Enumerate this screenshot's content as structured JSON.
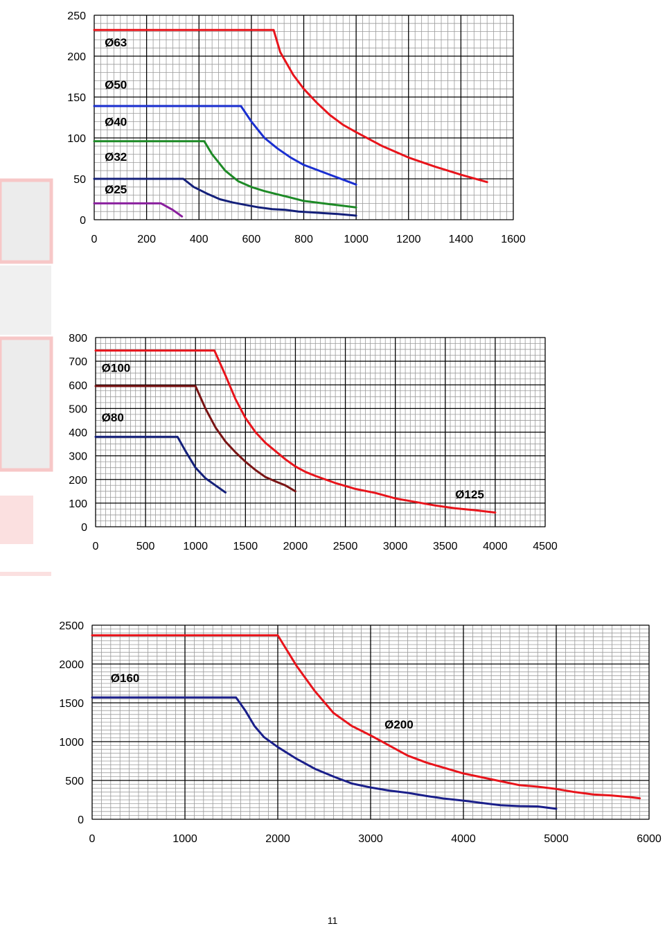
{
  "page_number": "11",
  "chart_data": [
    {
      "type": "line",
      "title": "",
      "xlabel": "",
      "ylabel": "",
      "xlim": [
        0,
        1600
      ],
      "ylim": [
        0,
        250
      ],
      "x_ticks": [
        0,
        200,
        400,
        600,
        800,
        1000,
        1200,
        1400,
        1600
      ],
      "y_ticks": [
        0,
        50,
        100,
        150,
        200,
        250
      ],
      "grid": true,
      "series": [
        {
          "name": "Ø63",
          "color": "#e8141b",
          "points": [
            [
              0,
              232
            ],
            [
              685,
              232
            ],
            [
              710,
              205
            ],
            [
              760,
              177
            ],
            [
              800,
              160
            ],
            [
              850,
              143
            ],
            [
              900,
              128
            ],
            [
              950,
              116
            ],
            [
              1000,
              107
            ],
            [
              1100,
              90
            ],
            [
              1200,
              76
            ],
            [
              1300,
              65
            ],
            [
              1400,
              55
            ],
            [
              1500,
              46
            ]
          ]
        },
        {
          "name": "Ø50",
          "color": "#1a2fd1",
          "points": [
            [
              0,
              139
            ],
            [
              560,
              139
            ],
            [
              600,
              120
            ],
            [
              650,
              100
            ],
            [
              700,
              87
            ],
            [
              750,
              76
            ],
            [
              800,
              67
            ],
            [
              850,
              61
            ],
            [
              900,
              55
            ],
            [
              950,
              49
            ],
            [
              1000,
              43
            ]
          ]
        },
        {
          "name": "Ø40",
          "color": "#1d8a26",
          "points": [
            [
              0,
              96
            ],
            [
              420,
              96
            ],
            [
              450,
              80
            ],
            [
              500,
              60
            ],
            [
              550,
              47
            ],
            [
              600,
              40
            ],
            [
              650,
              35
            ],
            [
              700,
              31
            ],
            [
              750,
              27
            ],
            [
              800,
              23
            ],
            [
              850,
              21
            ],
            [
              900,
              19
            ],
            [
              950,
              17
            ],
            [
              1000,
              15
            ]
          ]
        },
        {
          "name": "Ø32",
          "color": "#14207a",
          "points": [
            [
              0,
              50
            ],
            [
              340,
              50
            ],
            [
              380,
              40
            ],
            [
              430,
              32
            ],
            [
              480,
              25
            ],
            [
              530,
              21
            ],
            [
              580,
              18
            ],
            [
              630,
              15
            ],
            [
              680,
              13
            ],
            [
              730,
              12
            ],
            [
              780,
              10
            ],
            [
              830,
              9
            ],
            [
              880,
              8
            ],
            [
              930,
              7
            ],
            [
              1000,
              5
            ]
          ]
        },
        {
          "name": "Ø25",
          "color": "#8a1f9e",
          "points": [
            [
              0,
              20
            ],
            [
              255,
              20
            ],
            [
              300,
              12
            ],
            [
              335,
              4
            ]
          ]
        }
      ],
      "labels": [
        {
          "text": "Ø63",
          "x": 40,
          "y": 212
        },
        {
          "text": "Ø50",
          "x": 40,
          "y": 160
        },
        {
          "text": "Ø40",
          "x": 40,
          "y": 115
        },
        {
          "text": "Ø32",
          "x": 40,
          "y": 72
        },
        {
          "text": "Ø25",
          "x": 40,
          "y": 32
        }
      ]
    },
    {
      "type": "line",
      "title": "",
      "xlabel": "",
      "ylabel": "",
      "xlim": [
        0,
        4500
      ],
      "ylim": [
        0,
        800
      ],
      "x_ticks": [
        0,
        500,
        1000,
        1500,
        2000,
        2500,
        3000,
        3500,
        4000,
        4500
      ],
      "y_ticks": [
        0,
        100,
        200,
        300,
        400,
        500,
        600,
        700,
        800
      ],
      "grid": true,
      "series": [
        {
          "name": "Ø125",
          "color": "#e8141b",
          "points": [
            [
              0,
              745
            ],
            [
              1190,
              745
            ],
            [
              1300,
              640
            ],
            [
              1400,
              540
            ],
            [
              1500,
              460
            ],
            [
              1600,
              400
            ],
            [
              1700,
              355
            ],
            [
              1800,
              320
            ],
            [
              1900,
              285
            ],
            [
              2000,
              255
            ],
            [
              2100,
              232
            ],
            [
              2200,
              215
            ],
            [
              2400,
              185
            ],
            [
              2600,
              160
            ],
            [
              2800,
              143
            ],
            [
              3000,
              120
            ],
            [
              3200,
              105
            ],
            [
              3400,
              90
            ],
            [
              3600,
              78
            ],
            [
              3800,
              70
            ],
            [
              4000,
              60
            ]
          ]
        },
        {
          "name": "Ø100",
          "color": "#7a1414",
          "points": [
            [
              0,
              595
            ],
            [
              1000,
              595
            ],
            [
              1100,
              500
            ],
            [
              1200,
              420
            ],
            [
              1300,
              360
            ],
            [
              1400,
              315
            ],
            [
              1500,
              275
            ],
            [
              1600,
              240
            ],
            [
              1700,
              210
            ],
            [
              1800,
              192
            ],
            [
              1900,
              175
            ],
            [
              2000,
              150
            ]
          ]
        },
        {
          "name": "Ø80",
          "color": "#14207a",
          "points": [
            [
              0,
              380
            ],
            [
              820,
              380
            ],
            [
              900,
              320
            ],
            [
              1000,
              250
            ],
            [
              1100,
              205
            ],
            [
              1200,
              175
            ],
            [
              1300,
              145
            ]
          ]
        }
      ],
      "labels": [
        {
          "text": "Ø100",
          "x": 60,
          "y": 655
        },
        {
          "text": "Ø80",
          "x": 60,
          "y": 445
        },
        {
          "text": "Ø125",
          "x": 3600,
          "y": 120
        }
      ]
    },
    {
      "type": "line",
      "title": "",
      "xlabel": "",
      "ylabel": "",
      "xlim": [
        0,
        6000
      ],
      "ylim": [
        0,
        2500
      ],
      "x_ticks": [
        0,
        1000,
        2000,
        3000,
        4000,
        5000,
        6000
      ],
      "y_ticks": [
        0,
        500,
        1000,
        1500,
        2000,
        2500
      ],
      "grid": true,
      "series": [
        {
          "name": "Ø200",
          "color": "#e8141b",
          "points": [
            [
              0,
              2370
            ],
            [
              2000,
              2370
            ],
            [
              2200,
              1980
            ],
            [
              2400,
              1650
            ],
            [
              2600,
              1370
            ],
            [
              2800,
              1200
            ],
            [
              3000,
              1080
            ],
            [
              3200,
              950
            ],
            [
              3400,
              820
            ],
            [
              3600,
              730
            ],
            [
              3800,
              660
            ],
            [
              4000,
              590
            ],
            [
              4200,
              540
            ],
            [
              4400,
              490
            ],
            [
              4600,
              440
            ],
            [
              4800,
              420
            ],
            [
              5000,
              390
            ],
            [
              5200,
              350
            ],
            [
              5400,
              320
            ],
            [
              5600,
              305
            ],
            [
              5800,
              285
            ],
            [
              5900,
              270
            ]
          ]
        },
        {
          "name": "Ø160",
          "color": "#1a1f8a",
          "points": [
            [
              0,
              1570
            ],
            [
              1550,
              1570
            ],
            [
              1650,
              1400
            ],
            [
              1750,
              1200
            ],
            [
              1850,
              1060
            ],
            [
              2000,
              930
            ],
            [
              2200,
              780
            ],
            [
              2400,
              650
            ],
            [
              2600,
              550
            ],
            [
              2800,
              460
            ],
            [
              3000,
              410
            ],
            [
              3200,
              370
            ],
            [
              3400,
              340
            ],
            [
              3600,
              300
            ],
            [
              3800,
              265
            ],
            [
              4000,
              240
            ],
            [
              4200,
              210
            ],
            [
              4400,
              180
            ],
            [
              4600,
              170
            ],
            [
              4800,
              165
            ],
            [
              5000,
              135
            ]
          ]
        }
      ],
      "labels": [
        {
          "text": "Ø160",
          "x": 200,
          "y": 1770
        },
        {
          "text": "Ø200",
          "x": 3150,
          "y": 1170
        }
      ]
    }
  ]
}
